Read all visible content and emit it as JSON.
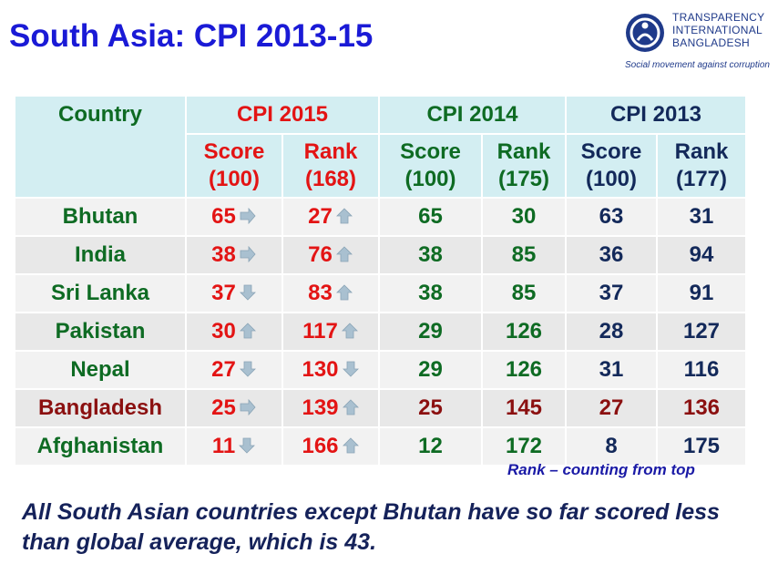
{
  "title": "South Asia: CPI 2013-15",
  "logo": {
    "line1": "TRANSPARENCY",
    "line2": "INTERNATIONAL",
    "line3": "BANGLADESH",
    "tagline": "Social movement against corruption"
  },
  "table": {
    "country_header": "Country",
    "groups": [
      "CPI 2015",
      "CPI 2014",
      "CPI 2013"
    ],
    "subheaders": [
      {
        "label": "Score",
        "scale": "(100)"
      },
      {
        "label": "Rank",
        "scale": "(168)"
      },
      {
        "label": "Score",
        "scale": "(100)"
      },
      {
        "label": "Rank",
        "scale": "(175)"
      },
      {
        "label": "Score",
        "scale": "(100)"
      },
      {
        "label": "Rank",
        "scale": "(177)"
      }
    ],
    "rows": [
      {
        "country": "Bhutan",
        "s2015": "65",
        "s2015_trend": "right",
        "r2015": "27",
        "r2015_trend": "up",
        "s2014": "65",
        "r2014": "30",
        "s2013": "63",
        "r2013": "31",
        "highlight": false
      },
      {
        "country": "India",
        "s2015": "38",
        "s2015_trend": "right",
        "r2015": "76",
        "r2015_trend": "up",
        "s2014": "38",
        "r2014": "85",
        "s2013": "36",
        "r2013": "94",
        "highlight": false
      },
      {
        "country": "Sri Lanka",
        "s2015": "37",
        "s2015_trend": "down",
        "r2015": "83",
        "r2015_trend": "up",
        "s2014": "38",
        "r2014": "85",
        "s2013": "37",
        "r2013": "91",
        "highlight": false
      },
      {
        "country": "Pakistan",
        "s2015": "30",
        "s2015_trend": "up",
        "r2015": "117",
        "r2015_trend": "up",
        "s2014": "29",
        "r2014": "126",
        "s2013": "28",
        "r2013": "127",
        "highlight": false
      },
      {
        "country": "Nepal",
        "s2015": "27",
        "s2015_trend": "down",
        "r2015": "130",
        "r2015_trend": "down",
        "s2014": "29",
        "r2014": "126",
        "s2013": "31",
        "r2013": "116",
        "highlight": false
      },
      {
        "country": "Bangladesh",
        "s2015": "25",
        "s2015_trend": "right",
        "r2015": "139",
        "r2015_trend": "up",
        "s2014": "25",
        "r2014": "145",
        "s2013": "27",
        "r2013": "136",
        "highlight": true
      },
      {
        "country": "Afghanistan",
        "s2015": "11",
        "s2015_trend": "down",
        "r2015": "166",
        "r2015_trend": "up",
        "s2014": "12",
        "r2014": "172",
        "s2013": "8",
        "r2013": "175",
        "highlight": false
      }
    ]
  },
  "note": "Rank – counting from top",
  "conclusion": "All South Asian countries except Bhutan have so far scored less than global average, which is 43.",
  "colors": {
    "title": "#1a1ad6",
    "cpi2015": "#e31414",
    "cpi2014": "#0e6b23",
    "cpi2013": "#13295a",
    "highlight": "#8b1010",
    "header_bg": "#d3eef2",
    "arrow": "#a9c0d0"
  }
}
